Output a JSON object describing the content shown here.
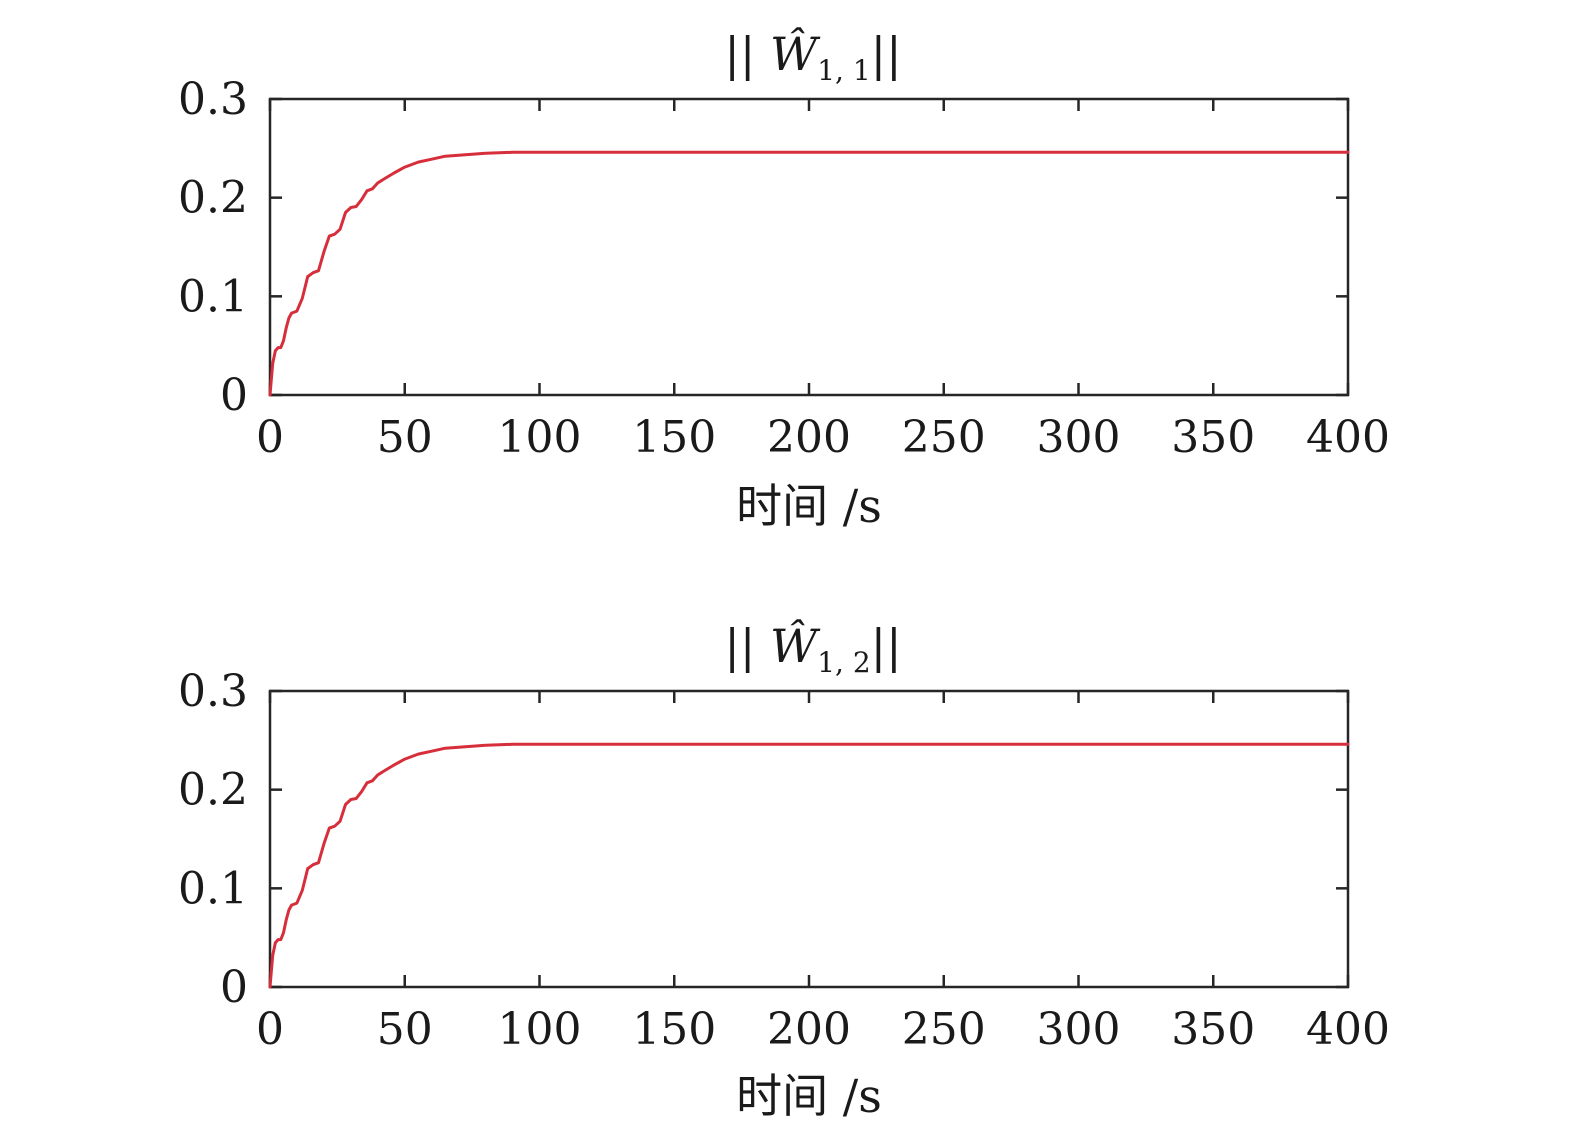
{
  "chart_data": [
    {
      "type": "line",
      "title": {
        "prefix": "|| ",
        "symbol": "Ŵ",
        "subscript": "1, 1",
        "suffix": "||"
      },
      "xlabel": "时间 /s",
      "ylabel": "",
      "xlim": [
        0,
        400
      ],
      "ylim": [
        0,
        0.3
      ],
      "xticks": [
        "0",
        "50",
        "100",
        "150",
        "200",
        "250",
        "300",
        "350",
        "400"
      ],
      "yticks": [
        "0",
        "0.1",
        "0.2",
        "0.3"
      ],
      "grid": false,
      "color": "#d62e3b",
      "series": [
        {
          "x": [
            0,
            1,
            2,
            3,
            4,
            5,
            6,
            7,
            8,
            10,
            12,
            14,
            16,
            18,
            20,
            22,
            24,
            26,
            28,
            30,
            32,
            34,
            36,
            38,
            40,
            43,
            46,
            50,
            55,
            60,
            65,
            70,
            75,
            80,
            90,
            100,
            120,
            150,
            175,
            200,
            250,
            300,
            350,
            400
          ],
          "y": [
            0,
            0.032,
            0.045,
            0.048,
            0.048,
            0.055,
            0.068,
            0.078,
            0.083,
            0.085,
            0.098,
            0.12,
            0.124,
            0.126,
            0.145,
            0.161,
            0.163,
            0.168,
            0.185,
            0.19,
            0.191,
            0.198,
            0.207,
            0.209,
            0.215,
            0.22,
            0.225,
            0.231,
            0.236,
            0.239,
            0.242,
            0.243,
            0.244,
            0.245,
            0.246,
            0.246,
            0.246,
            0.246,
            0.246,
            0.246,
            0.246,
            0.246,
            0.246,
            0.246
          ]
        }
      ]
    },
    {
      "type": "line",
      "title": {
        "prefix": "|| ",
        "symbol": "Ŵ",
        "subscript": "1, 2",
        "suffix": "||"
      },
      "xlabel": "时间 /s",
      "ylabel": "",
      "xlim": [
        0,
        400
      ],
      "ylim": [
        0,
        0.3
      ],
      "xticks": [
        "0",
        "50",
        "100",
        "150",
        "200",
        "250",
        "300",
        "350",
        "400"
      ],
      "yticks": [
        "0",
        "0.1",
        "0.2",
        "0.3"
      ],
      "grid": false,
      "color": "#d62e3b",
      "series": [
        {
          "x": [
            0,
            1,
            2,
            3,
            4,
            5,
            6,
            7,
            8,
            10,
            12,
            14,
            16,
            18,
            20,
            22,
            24,
            26,
            28,
            30,
            32,
            34,
            36,
            38,
            40,
            43,
            46,
            50,
            55,
            60,
            65,
            70,
            75,
            80,
            90,
            100,
            120,
            150,
            175,
            200,
            250,
            300,
            350,
            400
          ],
          "y": [
            0,
            0.032,
            0.045,
            0.048,
            0.048,
            0.055,
            0.068,
            0.078,
            0.083,
            0.085,
            0.098,
            0.12,
            0.124,
            0.126,
            0.145,
            0.161,
            0.163,
            0.168,
            0.185,
            0.19,
            0.191,
            0.198,
            0.207,
            0.209,
            0.215,
            0.22,
            0.225,
            0.231,
            0.236,
            0.239,
            0.242,
            0.243,
            0.244,
            0.245,
            0.246,
            0.246,
            0.246,
            0.246,
            0.246,
            0.246,
            0.246,
            0.246,
            0.246,
            0.246
          ]
        }
      ]
    }
  ]
}
